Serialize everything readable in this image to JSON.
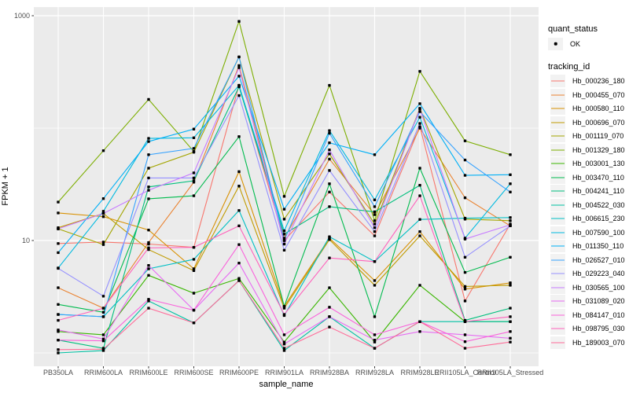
{
  "chart": {
    "y_axis_title": "FPKM + 1",
    "x_axis_title": "sample_name",
    "panel_bg_color": "#EBEBEB",
    "gridline_color": "#FFFFFF",
    "tick_text_color": "#4D4D4D",
    "point_color": "#000000"
  },
  "legend": {
    "quant_status_title": "quant_status",
    "quant_status_items": [
      {
        "label": "OK"
      }
    ],
    "tracking_title": "tracking_id"
  },
  "chart_data": {
    "type": "line",
    "title": "",
    "xlabel": "sample_name",
    "ylabel": "FPKM + 1",
    "y_scale": "log10",
    "y_breaks": [
      1000,
      10
    ],
    "y_minor_breaks": [
      100,
      1
    ],
    "ylim": [
      0.85,
      1200
    ],
    "grid": true,
    "legend_position": "right",
    "point_shape": "small black square (quant_status OK)",
    "x_categories": [
      "PB350LA",
      "RRIM600LA",
      "RRIM600LE",
      "RRIM600SE",
      "RRIM600PE",
      "RRIM901LA",
      "RRIM928BA",
      "RRIM928LA",
      "RRIM928LE",
      "RRII105LA_Control",
      "RRII105LA_Stressed"
    ],
    "series": [
      {
        "name": "Hb_000236_180",
        "color": "#F8766D",
        "values": [
          9.4,
          9.7,
          9.3,
          8.7,
          240,
          10.0,
          27,
          11,
          103,
          2.9,
          14
        ]
      },
      {
        "name": "Hb_000455_070",
        "color": "#EA8331",
        "values": [
          3.8,
          2.5,
          9.6,
          33,
          360,
          10.5,
          53,
          17,
          100,
          24,
          13.5
        ]
      },
      {
        "name": "Hb_000580_110",
        "color": "#D89000",
        "values": [
          17.6,
          16.3,
          12.4,
          5.6,
          41,
          2.6,
          10.5,
          4.4,
          12,
          3.7,
          4.2
        ]
      },
      {
        "name": "Hb_000696_070",
        "color": "#C09B00",
        "values": [
          13.0,
          17.4,
          8.3,
          5.4,
          30.5,
          2.5,
          10.2,
          4.0,
          11,
          3.9,
          4.0
        ]
      },
      {
        "name": "Hb_001119_070",
        "color": "#A3A500",
        "values": [
          12.7,
          9.2,
          44,
          61,
          430,
          15.5,
          59,
          14,
          150,
          15.5,
          15
        ]
      },
      {
        "name": "Hb_001329_180",
        "color": "#7CAE00",
        "values": [
          22,
          63,
          180,
          62,
          890,
          24.7,
          240,
          15,
          320,
          77,
          58
        ]
      },
      {
        "name": "Hb_003001_130",
        "color": "#39B600",
        "values": [
          1.55,
          1.45,
          4.9,
          3.4,
          4.6,
          1.25,
          3.8,
          1.25,
          4.0,
          1.9,
          1.9
        ]
      },
      {
        "name": "Hb_003470_110",
        "color": "#00BB4E",
        "values": [
          2.7,
          2.3,
          23.5,
          25,
          84,
          2.6,
          32,
          2.1,
          44,
          5.2,
          7.1
        ]
      },
      {
        "name": "Hb_004241_110",
        "color": "#00BF7D",
        "values": [
          1.3,
          1.1,
          30,
          34,
          233,
          11.4,
          20,
          18,
          31,
          1.95,
          2.5
        ]
      },
      {
        "name": "Hb_004522_030",
        "color": "#00C1A3",
        "values": [
          1.0,
          1.05,
          2.9,
          1.85,
          4.4,
          1.05,
          2.1,
          1.1,
          1.9,
          1.9,
          1.9
        ]
      },
      {
        "name": "Hb_006615_230",
        "color": "#00BFC4",
        "values": [
          2.2,
          2.1,
          5.6,
          6.8,
          18.5,
          2.15,
          10.8,
          6.5,
          15.4,
          15.8,
          16
        ]
      },
      {
        "name": "Hb_007590_100",
        "color": "#00BAE0",
        "values": [
          5.7,
          18.2,
          81,
          82,
          240,
          12.2,
          95,
          23,
          125,
          10.5,
          32
        ]
      },
      {
        "name": "Hb_011350_110",
        "color": "#00B0F6",
        "values": [
          7.8,
          23.6,
          76,
          98,
          290,
          19,
          74,
          58,
          165,
          38,
          38.5
        ]
      },
      {
        "name": "Hb_026527_010",
        "color": "#35A2FF",
        "values": [
          2.2,
          2.1,
          58,
          66,
          430,
          10,
          90,
          20,
          140,
          52,
          27
        ]
      },
      {
        "name": "Hb_029223_040",
        "color": "#9590FF",
        "values": [
          5.65,
          3.2,
          36,
          36,
          195,
          8.2,
          42,
          12,
          110,
          7.1,
          13.5
        ]
      },
      {
        "name": "Hb_030565_100",
        "color": "#C77CFF",
        "values": [
          12.7,
          17.4,
          28,
          40,
          345,
          9.3,
          64,
          13,
          148,
          10.3,
          13.8
        ]
      },
      {
        "name": "Hb_031089_020",
        "color": "#E76BF3",
        "values": [
          1.6,
          1.33,
          6.0,
          2.4,
          6.3,
          1.2,
          2.1,
          1.3,
          1.55,
          1.45,
          1.35
        ]
      },
      {
        "name": "Hb_084147_010",
        "color": "#FA62DB",
        "values": [
          1.3,
          1.28,
          3.0,
          2.4,
          9.2,
          1.45,
          2.55,
          1.45,
          1.9,
          1.26,
          1.55
        ]
      },
      {
        "name": "Hb_098795_030",
        "color": "#FF62BC",
        "values": [
          1.95,
          2.5,
          8.6,
          8.7,
          13.5,
          2.2,
          7.0,
          6.5,
          25,
          1.9,
          2.1
        ]
      },
      {
        "name": "Hb_189003_070",
        "color": "#FF6A98",
        "values": [
          1.07,
          1.08,
          2.5,
          1.85,
          4.4,
          1.1,
          1.7,
          1.1,
          1.9,
          1.1,
          1.25
        ]
      }
    ]
  }
}
